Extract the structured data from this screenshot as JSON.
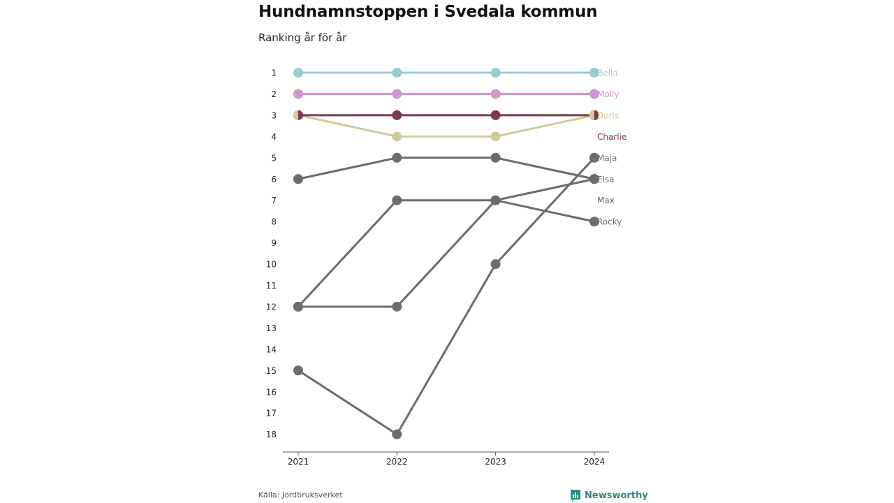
{
  "title": "Hundnamnstoppen i Svedala kommun",
  "subtitle": "Ranking år för år",
  "source": "Källa: Jordbruksverket",
  "brand": "Newsworthy",
  "colors": {
    "brand": "#2a8d84",
    "axis": "#555555",
    "tick_text": "#222222"
  },
  "chart_data": {
    "type": "line",
    "x": [
      "2021",
      "2022",
      "2023",
      "2024"
    ],
    "y_reversed": true,
    "ylim": [
      1,
      18
    ],
    "y_ticks": [
      1,
      2,
      3,
      4,
      5,
      6,
      7,
      8,
      9,
      10,
      11,
      12,
      13,
      14,
      15,
      16,
      17,
      18
    ],
    "grid": false,
    "series": [
      {
        "name": "Bella",
        "color": "#96cdcf",
        "values": [
          1,
          1,
          1,
          1
        ]
      },
      {
        "name": "Molly",
        "color": "#cf97cf",
        "values": [
          2,
          2,
          2,
          2
        ]
      },
      {
        "name": "Doris",
        "color": "#cfcc97",
        "values": [
          3,
          4,
          4,
          3
        ]
      },
      {
        "name": "Charlie",
        "color": "#7d3a4d",
        "values": [
          3,
          3,
          3,
          3
        ]
      },
      {
        "name": "Maja",
        "color": "#6b6b70",
        "values": [
          15,
          18,
          10,
          5
        ]
      },
      {
        "name": "Elsa",
        "color": "#6b6b70",
        "values": [
          6,
          5,
          5,
          6
        ]
      },
      {
        "name": "Max",
        "color": "#6b6b70",
        "values": [
          12,
          12,
          7,
          6
        ]
      },
      {
        "name": "Rocky",
        "color": "#6b6b70",
        "values": [
          12,
          7,
          7,
          8
        ]
      }
    ],
    "labels": [
      {
        "name": "Bella",
        "rank": 1
      },
      {
        "name": "Molly",
        "rank": 2
      },
      {
        "name": "Doris",
        "rank": 3
      },
      {
        "name": "Charlie",
        "rank": 4
      },
      {
        "name": "Maja",
        "rank": 5
      },
      {
        "name": "Elsa",
        "rank": 6
      },
      {
        "name": "Max",
        "rank": 7
      },
      {
        "name": "Rocky",
        "rank": 8
      }
    ]
  }
}
